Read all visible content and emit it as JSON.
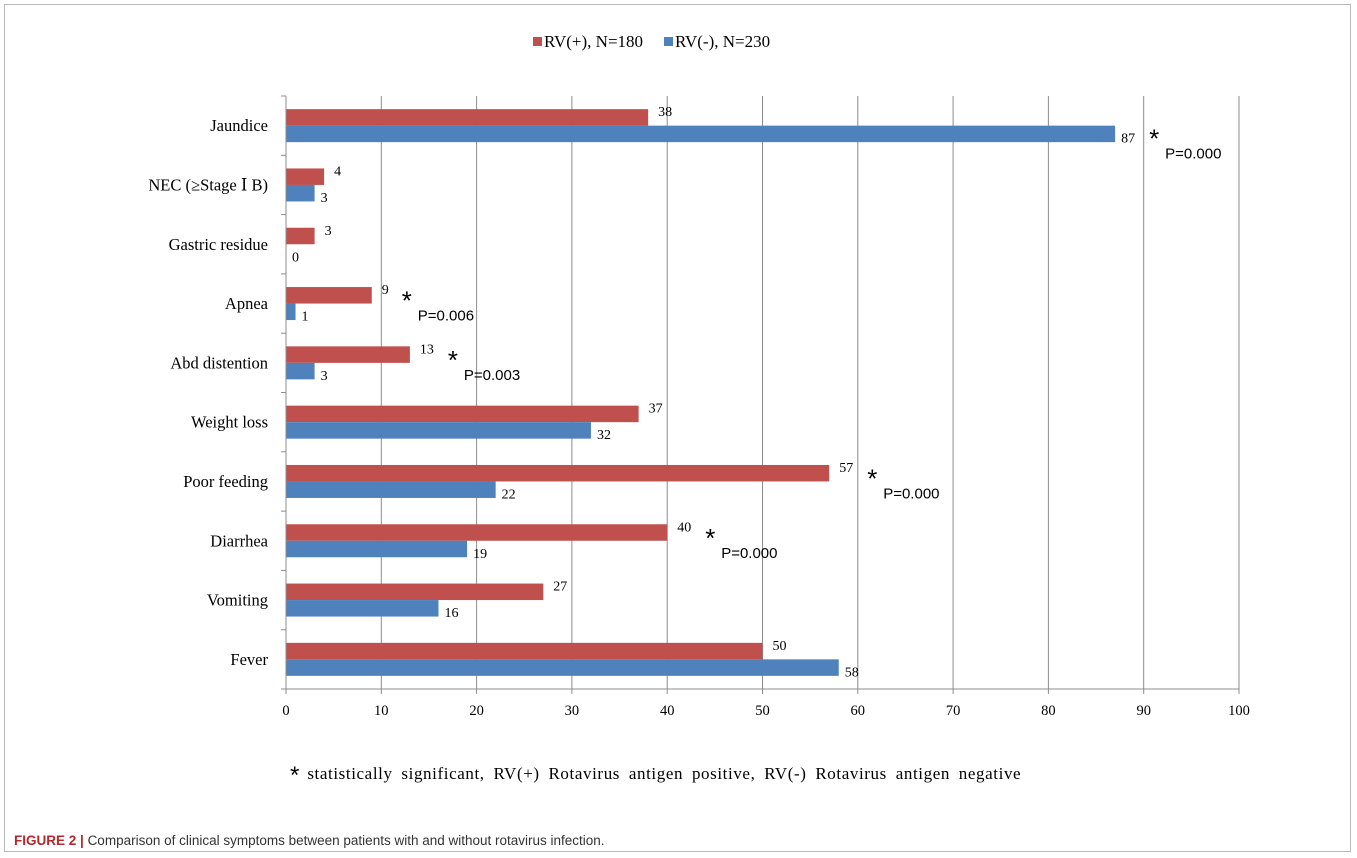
{
  "chart_data": {
    "type": "bar",
    "orientation": "horizontal",
    "categories": [
      "Jaundice",
      "NEC (≥Stage Ⅰ B)",
      "Gastric residue",
      "Apnea",
      "Abd distention",
      "Weight loss",
      "Poor feeding",
      "Diarrhea",
      "Vomiting",
      "Fever"
    ],
    "series": [
      {
        "name": "RV(+), N=180",
        "color": "#c0504d",
        "values": [
          38,
          4,
          3,
          9,
          13,
          37,
          57,
          40,
          27,
          50
        ]
      },
      {
        "name": "RV(-), N=230",
        "color": "#4f81bd",
        "values": [
          87,
          3,
          0,
          1,
          3,
          32,
          22,
          19,
          16,
          58
        ]
      }
    ],
    "xlim": [
      0,
      100
    ],
    "xticks": [
      0,
      10,
      20,
      30,
      40,
      50,
      60,
      70,
      80,
      90,
      100
    ],
    "grid": "vertical",
    "legend_position": "top",
    "annotations": [
      {
        "category": "Jaundice",
        "star": "*",
        "p_text": "P=0.000"
      },
      {
        "category": "Apnea",
        "star": "*",
        "p_text": "P=0.006"
      },
      {
        "category": "Abd distention",
        "star": "*",
        "p_text": "P=0.003"
      },
      {
        "category": "Poor feeding",
        "star": "*",
        "p_text": "P=0.000"
      },
      {
        "category": "Diarrhea",
        "star": "*",
        "p_text": "P=0.000"
      }
    ]
  },
  "footnote": {
    "star": "*",
    "text": "statistically significant, RV(+) Rotavirus antigen positive, RV(-) Rotavirus antigen negative"
  },
  "caption": {
    "label": "FIGURE 2 |",
    "text": "Comparison of clinical symptoms between patients with and without rotavirus infection."
  }
}
